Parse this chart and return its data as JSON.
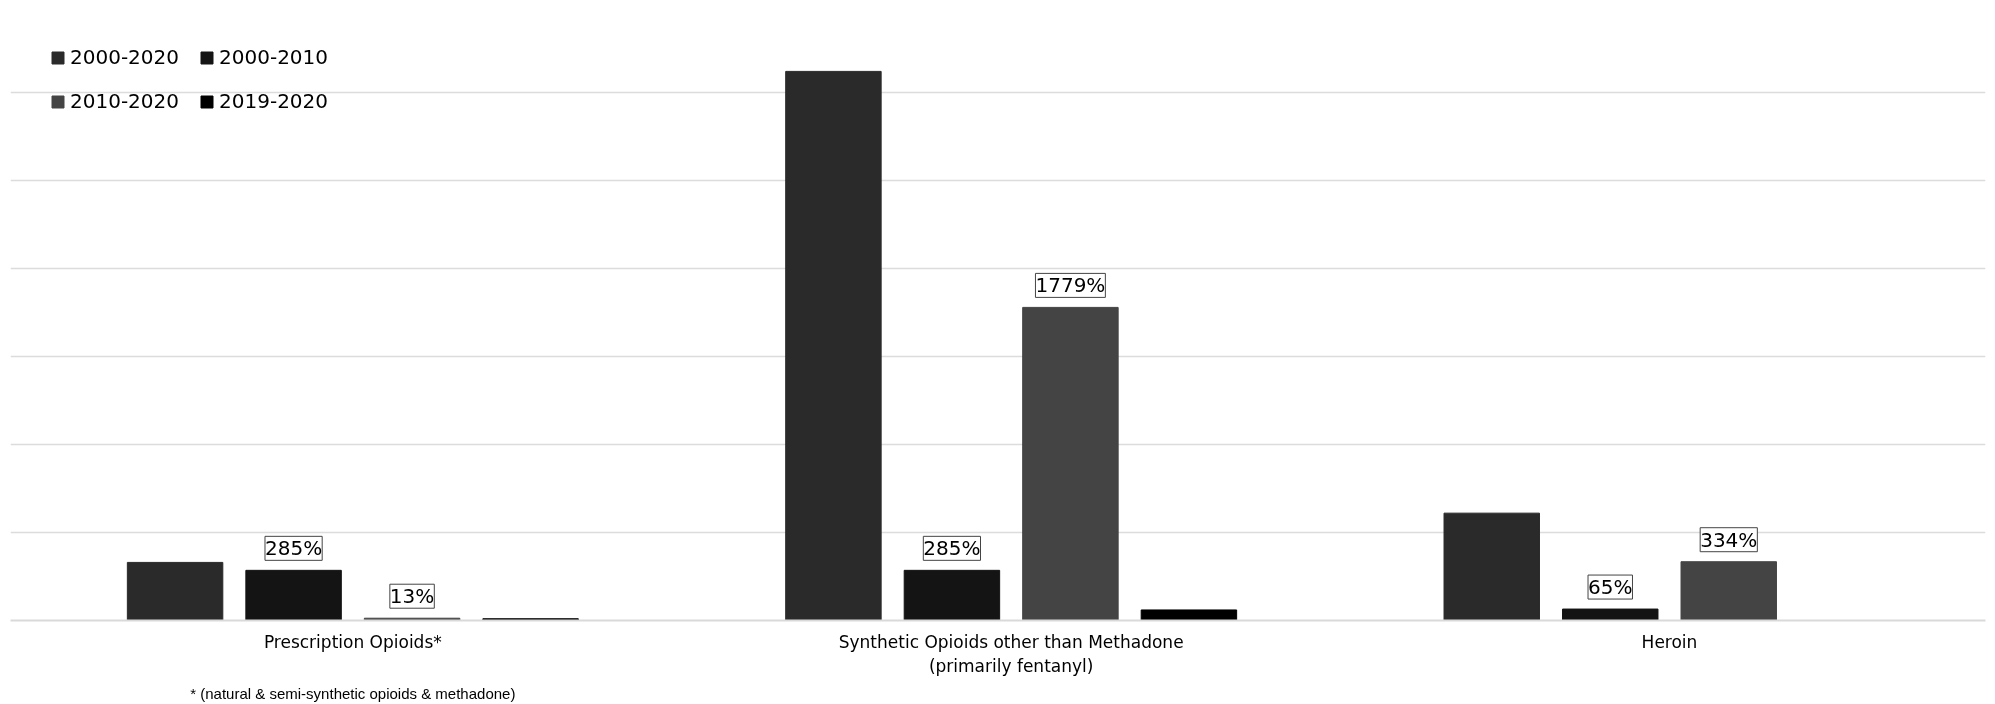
{
  "chart_data": {
    "type": "bar",
    "categories": [
      "Prescription Opioids*",
      "Synthetic Opioids other than Methadone\n(primarily fentanyl)",
      "Heroin"
    ],
    "series": [
      {
        "name": "2000-2020",
        "color": "#2a2a2a",
        "values": [
          330,
          3120,
          610
        ],
        "value_labels": [
          null,
          null,
          null
        ]
      },
      {
        "name": "2000-2010",
        "color": "#141414",
        "values": [
          285,
          285,
          65
        ],
        "value_labels": [
          "285%",
          "285%",
          "65%"
        ]
      },
      {
        "name": "2010-2020",
        "color": "#444444",
        "values": [
          13,
          1779,
          334
        ],
        "value_labels": [
          "13%",
          "1779%",
          "334%"
        ]
      },
      {
        "name": "2019-2020",
        "color": "#000000",
        "values": [
          10,
          60,
          0
        ],
        "value_labels": [
          null,
          null,
          null
        ]
      }
    ],
    "tick_labels": "x",
    "annotations": [
      "* (natural & semi-synthetic opioids & methadone)"
    ],
    "grid": "y",
    "legend": "top left"
  }
}
